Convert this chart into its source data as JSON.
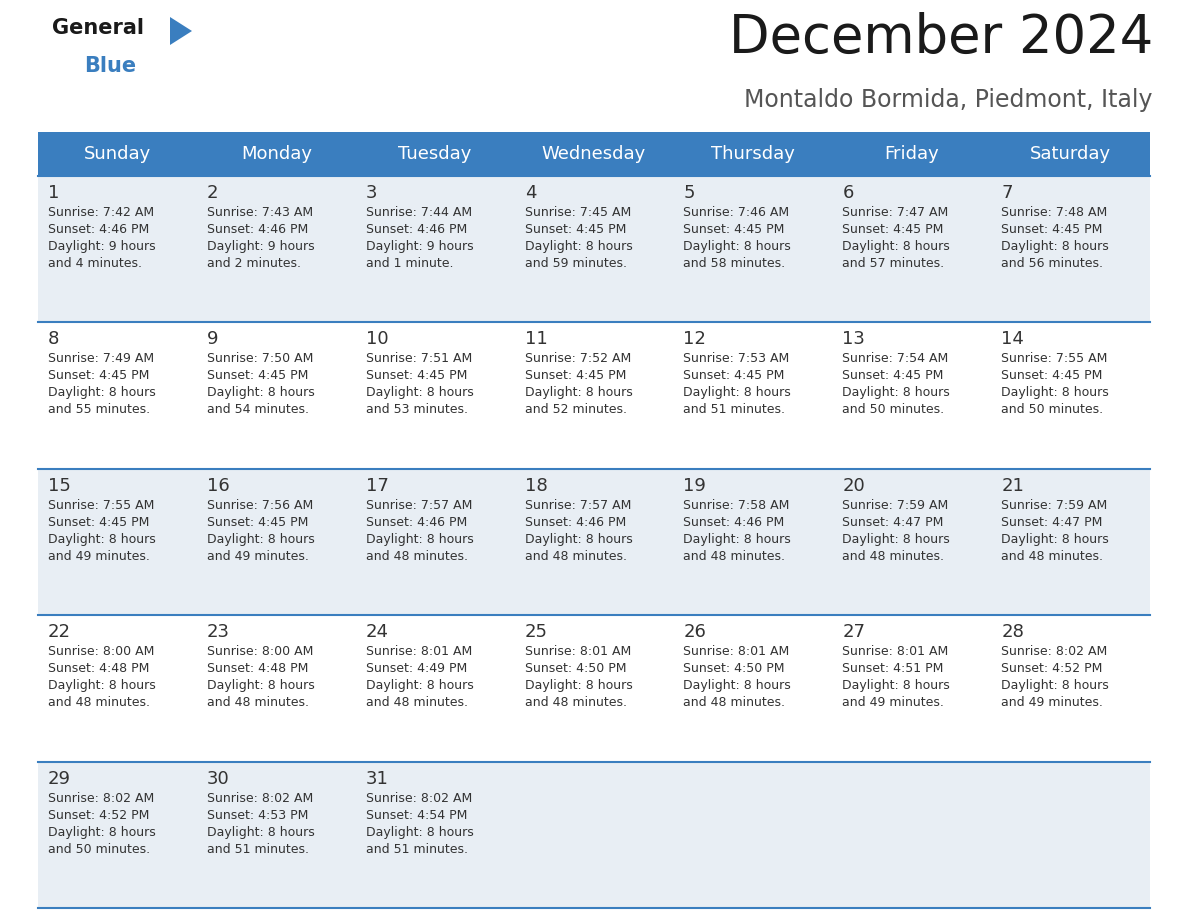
{
  "title": "December 2024",
  "subtitle": "Montaldo Bormida, Piedmont, Italy",
  "header_color": "#3a7ebf",
  "header_text_color": "#ffffff",
  "day_names": [
    "Sunday",
    "Monday",
    "Tuesday",
    "Wednesday",
    "Thursday",
    "Friday",
    "Saturday"
  ],
  "row_bg_even": "#e8eef4",
  "row_bg_odd": "#ffffff",
  "border_color": "#3a7ebf",
  "text_color": "#333333",
  "days": [
    {
      "day": 1,
      "col": 0,
      "row": 0,
      "sunrise": "7:42 AM",
      "sunset": "4:46 PM",
      "daylight_h": "9 hours",
      "daylight_m": "and 4 minutes."
    },
    {
      "day": 2,
      "col": 1,
      "row": 0,
      "sunrise": "7:43 AM",
      "sunset": "4:46 PM",
      "daylight_h": "9 hours",
      "daylight_m": "and 2 minutes."
    },
    {
      "day": 3,
      "col": 2,
      "row": 0,
      "sunrise": "7:44 AM",
      "sunset": "4:46 PM",
      "daylight_h": "9 hours",
      "daylight_m": "and 1 minute."
    },
    {
      "day": 4,
      "col": 3,
      "row": 0,
      "sunrise": "7:45 AM",
      "sunset": "4:45 PM",
      "daylight_h": "8 hours",
      "daylight_m": "and 59 minutes."
    },
    {
      "day": 5,
      "col": 4,
      "row": 0,
      "sunrise": "7:46 AM",
      "sunset": "4:45 PM",
      "daylight_h": "8 hours",
      "daylight_m": "and 58 minutes."
    },
    {
      "day": 6,
      "col": 5,
      "row": 0,
      "sunrise": "7:47 AM",
      "sunset": "4:45 PM",
      "daylight_h": "8 hours",
      "daylight_m": "and 57 minutes."
    },
    {
      "day": 7,
      "col": 6,
      "row": 0,
      "sunrise": "7:48 AM",
      "sunset": "4:45 PM",
      "daylight_h": "8 hours",
      "daylight_m": "and 56 minutes."
    },
    {
      "day": 8,
      "col": 0,
      "row": 1,
      "sunrise": "7:49 AM",
      "sunset": "4:45 PM",
      "daylight_h": "8 hours",
      "daylight_m": "and 55 minutes."
    },
    {
      "day": 9,
      "col": 1,
      "row": 1,
      "sunrise": "7:50 AM",
      "sunset": "4:45 PM",
      "daylight_h": "8 hours",
      "daylight_m": "and 54 minutes."
    },
    {
      "day": 10,
      "col": 2,
      "row": 1,
      "sunrise": "7:51 AM",
      "sunset": "4:45 PM",
      "daylight_h": "8 hours",
      "daylight_m": "and 53 minutes."
    },
    {
      "day": 11,
      "col": 3,
      "row": 1,
      "sunrise": "7:52 AM",
      "sunset": "4:45 PM",
      "daylight_h": "8 hours",
      "daylight_m": "and 52 minutes."
    },
    {
      "day": 12,
      "col": 4,
      "row": 1,
      "sunrise": "7:53 AM",
      "sunset": "4:45 PM",
      "daylight_h": "8 hours",
      "daylight_m": "and 51 minutes."
    },
    {
      "day": 13,
      "col": 5,
      "row": 1,
      "sunrise": "7:54 AM",
      "sunset": "4:45 PM",
      "daylight_h": "8 hours",
      "daylight_m": "and 50 minutes."
    },
    {
      "day": 14,
      "col": 6,
      "row": 1,
      "sunrise": "7:55 AM",
      "sunset": "4:45 PM",
      "daylight_h": "8 hours",
      "daylight_m": "and 50 minutes."
    },
    {
      "day": 15,
      "col": 0,
      "row": 2,
      "sunrise": "7:55 AM",
      "sunset": "4:45 PM",
      "daylight_h": "8 hours",
      "daylight_m": "and 49 minutes."
    },
    {
      "day": 16,
      "col": 1,
      "row": 2,
      "sunrise": "7:56 AM",
      "sunset": "4:45 PM",
      "daylight_h": "8 hours",
      "daylight_m": "and 49 minutes."
    },
    {
      "day": 17,
      "col": 2,
      "row": 2,
      "sunrise": "7:57 AM",
      "sunset": "4:46 PM",
      "daylight_h": "8 hours",
      "daylight_m": "and 48 minutes."
    },
    {
      "day": 18,
      "col": 3,
      "row": 2,
      "sunrise": "7:57 AM",
      "sunset": "4:46 PM",
      "daylight_h": "8 hours",
      "daylight_m": "and 48 minutes."
    },
    {
      "day": 19,
      "col": 4,
      "row": 2,
      "sunrise": "7:58 AM",
      "sunset": "4:46 PM",
      "daylight_h": "8 hours",
      "daylight_m": "and 48 minutes."
    },
    {
      "day": 20,
      "col": 5,
      "row": 2,
      "sunrise": "7:59 AM",
      "sunset": "4:47 PM",
      "daylight_h": "8 hours",
      "daylight_m": "and 48 minutes."
    },
    {
      "day": 21,
      "col": 6,
      "row": 2,
      "sunrise": "7:59 AM",
      "sunset": "4:47 PM",
      "daylight_h": "8 hours",
      "daylight_m": "and 48 minutes."
    },
    {
      "day": 22,
      "col": 0,
      "row": 3,
      "sunrise": "8:00 AM",
      "sunset": "4:48 PM",
      "daylight_h": "8 hours",
      "daylight_m": "and 48 minutes."
    },
    {
      "day": 23,
      "col": 1,
      "row": 3,
      "sunrise": "8:00 AM",
      "sunset": "4:48 PM",
      "daylight_h": "8 hours",
      "daylight_m": "and 48 minutes."
    },
    {
      "day": 24,
      "col": 2,
      "row": 3,
      "sunrise": "8:01 AM",
      "sunset": "4:49 PM",
      "daylight_h": "8 hours",
      "daylight_m": "and 48 minutes."
    },
    {
      "day": 25,
      "col": 3,
      "row": 3,
      "sunrise": "8:01 AM",
      "sunset": "4:50 PM",
      "daylight_h": "8 hours",
      "daylight_m": "and 48 minutes."
    },
    {
      "day": 26,
      "col": 4,
      "row": 3,
      "sunrise": "8:01 AM",
      "sunset": "4:50 PM",
      "daylight_h": "8 hours",
      "daylight_m": "and 48 minutes."
    },
    {
      "day": 27,
      "col": 5,
      "row": 3,
      "sunrise": "8:01 AM",
      "sunset": "4:51 PM",
      "daylight_h": "8 hours",
      "daylight_m": "and 49 minutes."
    },
    {
      "day": 28,
      "col": 6,
      "row": 3,
      "sunrise": "8:02 AM",
      "sunset": "4:52 PM",
      "daylight_h": "8 hours",
      "daylight_m": "and 49 minutes."
    },
    {
      "day": 29,
      "col": 0,
      "row": 4,
      "sunrise": "8:02 AM",
      "sunset": "4:52 PM",
      "daylight_h": "8 hours",
      "daylight_m": "and 50 minutes."
    },
    {
      "day": 30,
      "col": 1,
      "row": 4,
      "sunrise": "8:02 AM",
      "sunset": "4:53 PM",
      "daylight_h": "8 hours",
      "daylight_m": "and 51 minutes."
    },
    {
      "day": 31,
      "col": 2,
      "row": 4,
      "sunrise": "8:02 AM",
      "sunset": "4:54 PM",
      "daylight_h": "8 hours",
      "daylight_m": "and 51 minutes."
    }
  ],
  "logo_general_color": "#1a1a1a",
  "logo_blue_color": "#3a7ebf",
  "logo_triangle_color": "#3a7ebf"
}
